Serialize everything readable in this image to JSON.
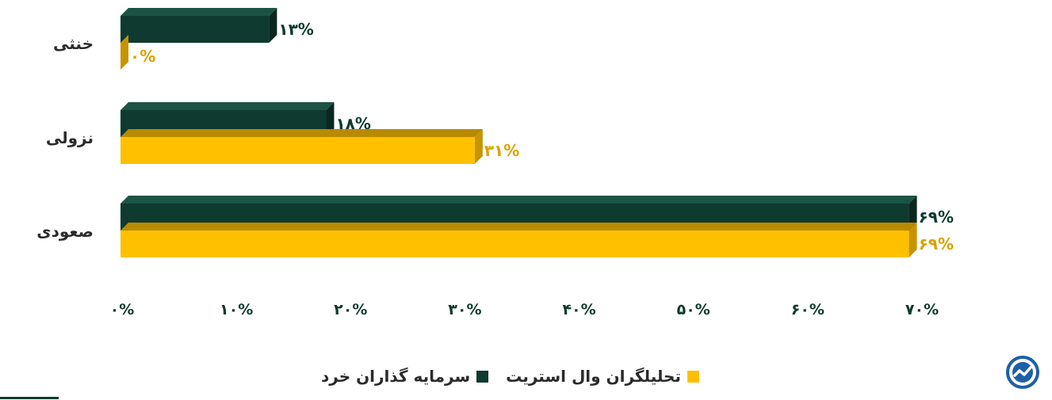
{
  "chart_data": {
    "type": "bar",
    "orientation": "horizontal",
    "categories": [
      "خنثی",
      "نزولی",
      "صعودی"
    ],
    "series": [
      {
        "name": "سرمایه گذاران خرد",
        "values": [
          13,
          18,
          69
        ],
        "labels": [
          "۱۳%",
          "۱۸%",
          "۶۹%"
        ],
        "color": "#0f3a2f"
      },
      {
        "name": "تحلیلگران وال استریت",
        "values": [
          0,
          31,
          69
        ],
        "labels": [
          "۰%",
          "۳۱%",
          "۶۹%"
        ],
        "color": "#ffc000"
      }
    ],
    "xlim": [
      0,
      70
    ],
    "xticks": [
      0,
      10,
      20,
      30,
      40,
      50,
      60,
      70
    ],
    "xtick_labels": [
      "۰%",
      "۱۰%",
      "۲۰%",
      "۳۰%",
      "۴۰%",
      "۵۰%",
      "۶۰%",
      "۷۰%"
    ],
    "grid": false,
    "legend_position": "bottom",
    "style": "3d"
  },
  "legend": {
    "items": [
      {
        "label": "سرمایه گذاران خرد",
        "color": "#0f3a2f"
      },
      {
        "label": "تحلیلگران وال استریت",
        "color": "#ffc000"
      }
    ]
  },
  "logo": {
    "icon": "brand-logo-icon",
    "color": "#1e5fa8"
  }
}
